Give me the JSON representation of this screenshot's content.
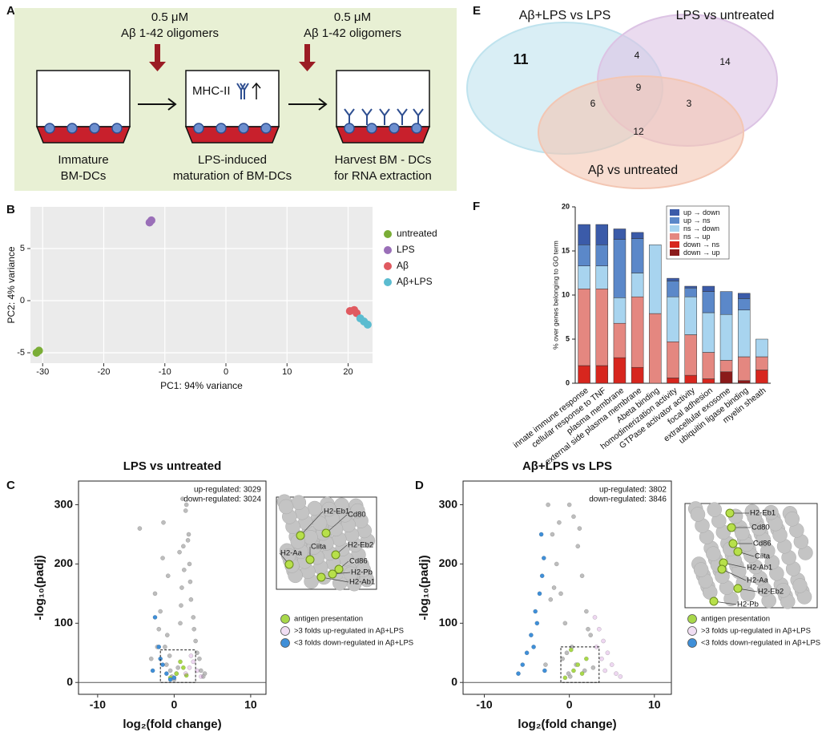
{
  "diagram": {
    "panel": "A",
    "doses": [
      {
        "dose": "0.5 μM",
        "agent": "Aβ 1-42 oligomers"
      },
      {
        "dose": "0.5 μM",
        "agent": "Aβ 1-42 oligomers"
      }
    ],
    "marker": "MHC-II",
    "steps": [
      [
        "Immature",
        "BM-DCs"
      ],
      [
        "LPS-induced",
        "maturation of BM-DCs"
      ],
      [
        "Harvest BM - DCs",
        "for RNA extraction"
      ]
    ]
  },
  "chart_data": [
    {
      "panel": "B",
      "type": "scatter",
      "xlabel": "PC1: 94% variance",
      "ylabel": "PC2: 4% variance",
      "xlim": [
        -32,
        24
      ],
      "ylim": [
        -6,
        9
      ],
      "xticks": [
        -30,
        -20,
        -10,
        0,
        10,
        20
      ],
      "yticks": [
        -5,
        0,
        5
      ],
      "grid": true,
      "background": "#ebebeb",
      "legend": "right",
      "series": [
        {
          "name": "untreated",
          "color": "#7aad36",
          "x": [
            -31,
            -30.6
          ],
          "values": [
            -5,
            -4.8
          ]
        },
        {
          "name": "LPS",
          "color": "#9a6fb8",
          "x": [
            -12.5,
            -12.2
          ],
          "values": [
            7.5,
            7.7
          ]
        },
        {
          "name": "Aβ",
          "color": "#e05a60",
          "x": [
            20.3,
            21,
            21.4
          ],
          "values": [
            -1,
            -0.9,
            -1.2
          ]
        },
        {
          "name": "Aβ+LPS",
          "color": "#5bbcd0",
          "x": [
            22,
            22.6,
            23.2
          ],
          "values": [
            -1.7,
            -2,
            -2.3
          ]
        }
      ]
    },
    {
      "panel": "C",
      "type": "scatter",
      "title": "LPS vs untreated",
      "xlabel": "log₂(fold change)",
      "ylabel": "-log₁₀(padj)",
      "xlim": [
        -12.5,
        12
      ],
      "ylim": [
        -20,
        340
      ],
      "xticks": [
        -10,
        0,
        10
      ],
      "yticks": [
        0,
        100,
        200,
        300
      ],
      "frame": true,
      "zero_line": true,
      "legend": "below-inset",
      "annotations": [
        "up-regulated: 3029",
        "down-regulated: 3024"
      ],
      "zoom_box": {
        "x": [
          -1.8,
          2.8
        ],
        "y": [
          0,
          55
        ]
      },
      "inset_labels": [
        "H2-Eb1",
        "Cd80",
        "Ciita",
        "H2-Aa",
        "H2-Eb2",
        "Cd86",
        "H2-Pb",
        "H2-Ab1"
      ],
      "series": [
        {
          "color": "#bdbdbd",
          "x": [
            -4.5,
            -3,
            -2.5,
            -2,
            -1.8,
            -1.5,
            -1.2,
            -1,
            -0.8,
            -0.5,
            -0.3,
            0,
            0.3,
            0.5,
            0.8,
            1,
            1.2,
            1.5,
            1.8,
            2,
            2.2,
            2.5,
            2.8,
            3,
            3.3,
            3.5,
            4,
            -1.4,
            1.6,
            0.9,
            1.3,
            2.1,
            -0.9,
            -2.2,
            2.6,
            1.1,
            1.9,
            0.7,
            -0.6,
            3.8
          ],
          "values": [
            260,
            40,
            150,
            90,
            120,
            210,
            60,
            30,
            180,
            20,
            10,
            5,
            15,
            25,
            100,
            160,
            230,
            290,
            240,
            200,
            140,
            110,
            70,
            50,
            40,
            20,
            15,
            270,
            300,
            130,
            190,
            170,
            80,
            60,
            90,
            310,
            250,
            220,
            45,
            10
          ]
        },
        {
          "name": "antigen presentation",
          "color": "#a8d84a",
          "x": [
            -0.5,
            0.3,
            1.2,
            0.8,
            1.6
          ],
          "values": [
            8,
            15,
            25,
            35,
            12
          ]
        },
        {
          "name": ">3 folds up-regulated in Aβ+LPS",
          "color": "#c77ad1",
          "x": [
            1.5,
            2,
            2.5,
            3,
            3.5,
            2.2
          ],
          "values": [
            15,
            25,
            35,
            20,
            10,
            45
          ]
        },
        {
          "name": "<3 folds down-regulated in Aβ+LPS",
          "color": "#3f8fd8",
          "x": [
            -2.5,
            -2,
            -1.5,
            -1,
            -0.5,
            0,
            -1.8,
            -2.8
          ],
          "values": [
            110,
            60,
            30,
            15,
            5,
            8,
            40,
            20
          ]
        }
      ]
    },
    {
      "panel": "D",
      "type": "scatter",
      "title": "Aβ+LPS vs LPS",
      "xlabel": "log₂(fold change)",
      "ylabel": "-log₁₀(padj)",
      "xlim": [
        -12.5,
        12
      ],
      "ylim": [
        -20,
        340
      ],
      "xticks": [
        -10,
        0,
        10
      ],
      "yticks": [
        0,
        100,
        200,
        300
      ],
      "frame": true,
      "zero_line": true,
      "legend": "below-inset",
      "annotations": [
        "up-regulated: 3802",
        "down-regulated: 3846"
      ],
      "zoom_box": {
        "x": [
          -1,
          3.5
        ],
        "y": [
          0,
          60
        ]
      },
      "inset_labels": [
        "H2-Eb1",
        "Cd80",
        "Cd86",
        "Ciita",
        "H2-Ab1",
        "H2-Aa",
        "H2-Eb2",
        "H2-Pb"
      ],
      "series": [
        {
          "color": "#bdbdbd",
          "x": [
            -2.5,
            -2,
            -1.5,
            -1,
            -0.5,
            0,
            0.5,
            1,
            1.5,
            2,
            2.5,
            -1.2,
            1.2,
            -0.3,
            0.3,
            -2.2,
            2.2,
            -0.8,
            0.8,
            1.8,
            -1.8,
            0.1,
            -0.1,
            2.8,
            -2.8
          ],
          "values": [
            300,
            250,
            200,
            150,
            100,
            300,
            280,
            230,
            180,
            120,
            80,
            270,
            260,
            50,
            60,
            140,
            90,
            40,
            30,
            20,
            160,
            10,
            15,
            25,
            30
          ]
        },
        {
          "name": "antigen presentation",
          "color": "#a8d84a",
          "x": [
            -0.5,
            0.5,
            1,
            1.5,
            2,
            0.2
          ],
          "values": [
            8,
            20,
            30,
            15,
            40,
            55
          ]
        },
        {
          "name": ">3 folds up-regulated in Aβ+LPS",
          "color": "#c77ad1",
          "x": [
            3,
            3.5,
            4,
            4.5,
            5,
            5.5,
            3.2,
            3.8,
            4.2,
            6
          ],
          "values": [
            110,
            90,
            70,
            50,
            30,
            15,
            60,
            40,
            20,
            10
          ]
        },
        {
          "name": "<3 folds down-regulated in Aβ+LPS",
          "color": "#3f8fd8",
          "x": [
            -3,
            -3.5,
            -4,
            -4.5,
            -5,
            -5.5,
            -3.2,
            -3.8,
            -4.2,
            -2.9,
            -3.3,
            -6
          ],
          "values": [
            210,
            150,
            120,
            80,
            50,
            30,
            180,
            100,
            60,
            20,
            250,
            15
          ]
        }
      ]
    },
    {
      "panel": "E",
      "type": "venn",
      "sets": [
        {
          "name": "Aβ+LPS vs LPS",
          "color": "#bfe3ee"
        },
        {
          "name": "LPS vs untreated",
          "color": "#dcc3e4"
        },
        {
          "name": "Aβ vs untreated",
          "color": "#f3c6b3"
        }
      ],
      "regions": [
        {
          "sets": [
            0
          ],
          "value": 11
        },
        {
          "sets": [
            0,
            1
          ],
          "value": 4
        },
        {
          "sets": [
            1
          ],
          "value": 14
        },
        {
          "sets": [
            0,
            2
          ],
          "value": 6
        },
        {
          "sets": [
            0,
            1,
            2
          ],
          "value": 9
        },
        {
          "sets": [
            1,
            2
          ],
          "value": 3
        },
        {
          "sets": [
            2
          ],
          "value": 12
        }
      ]
    },
    {
      "panel": "F",
      "type": "bar",
      "stacked": true,
      "ylabel": "% over genes belonging to GO term",
      "ylim": [
        0,
        20
      ],
      "yticks": [
        0,
        5,
        10,
        15,
        20
      ],
      "legend": "upper right",
      "categories": [
        "innate immune response",
        "cellular response to TNF",
        "plasma membrane",
        "external side plasma membrane",
        "Abeta binding",
        "homodimerization activity",
        "GTPase activator activity",
        "focal adhesion",
        "extracellular exosome",
        "ubiquitin ligase binding",
        "myelin sheath"
      ],
      "series": [
        {
          "name": "up → down",
          "color": "#3b5ba9",
          "values": [
            2.3,
            2.3,
            1.2,
            0.7,
            0,
            0.3,
            0.2,
            0.6,
            0,
            0.6,
            0
          ]
        },
        {
          "name": "up → ns",
          "color": "#5b88c9",
          "values": [
            2.4,
            2.4,
            6.6,
            3.9,
            0,
            1.8,
            1,
            2.4,
            2.6,
            1.3,
            0
          ]
        },
        {
          "name": "ns → down",
          "color": "#a8d4ef",
          "values": [
            2.6,
            2.6,
            2.9,
            2.7,
            7.8,
            5.1,
            4.3,
            4.5,
            5.2,
            5.3,
            2
          ]
        },
        {
          "name": "ns → up",
          "color": "#e48780",
          "values": [
            8.7,
            8.7,
            3.9,
            8,
            7.9,
            4.1,
            4.6,
            3,
            1.3,
            2.7,
            1.5
          ]
        },
        {
          "name": "down → ns",
          "color": "#d7261e",
          "values": [
            2,
            2,
            2.9,
            1.8,
            0,
            0.6,
            0.9,
            0.5,
            0,
            0,
            1.5
          ]
        },
        {
          "name": "down → up",
          "color": "#8b1a1a",
          "values": [
            0,
            0,
            0,
            0,
            0,
            0,
            0,
            0,
            1.3,
            0.3,
            0
          ]
        }
      ]
    }
  ]
}
